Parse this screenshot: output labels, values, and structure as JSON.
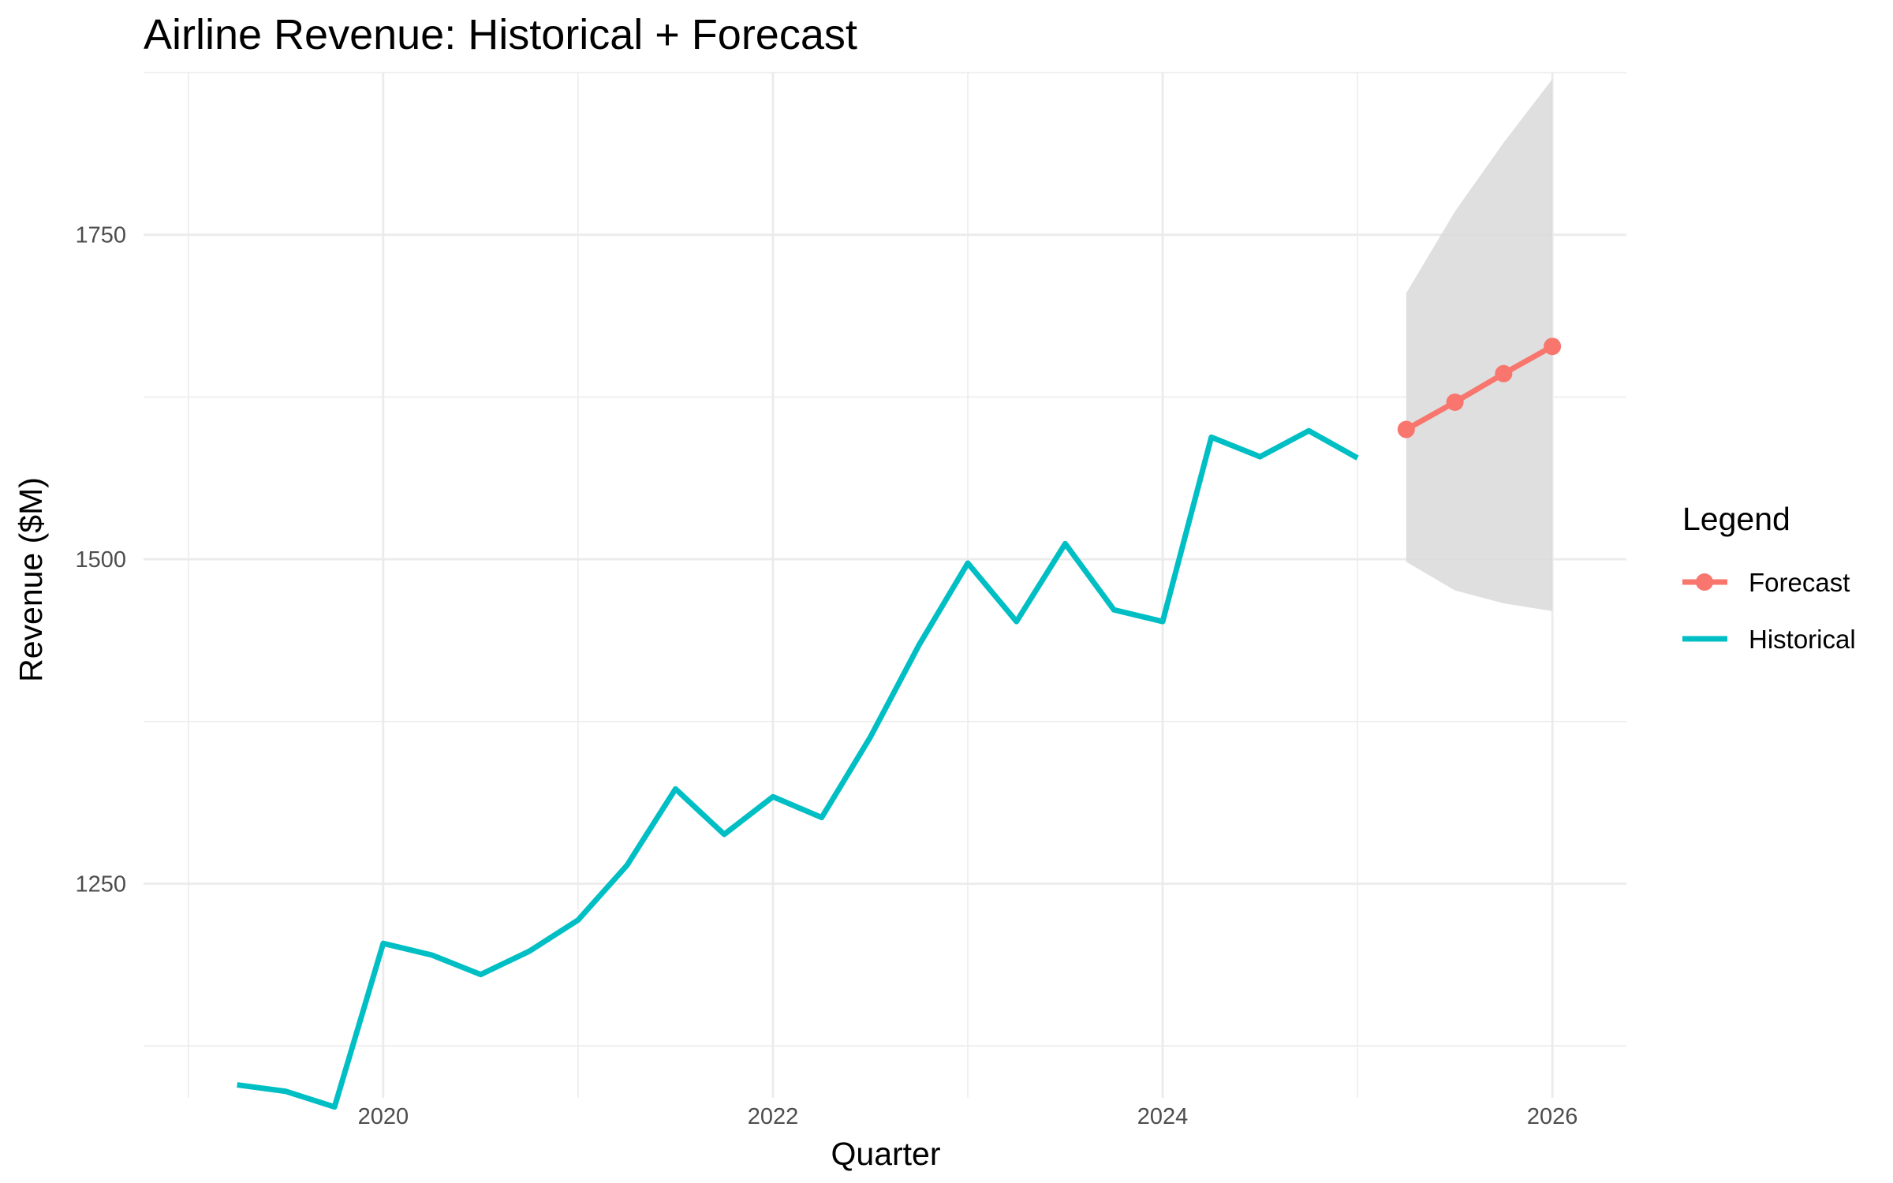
{
  "chart_data": {
    "type": "line",
    "title": "Airline Revenue: Historical + Forecast",
    "xlabel": "Quarter",
    "ylabel": "Revenue ($M)",
    "xlim": [
      2018.77,
      2026.38
    ],
    "ylim": [
      1085,
      1875
    ],
    "x_ticks": [
      2020,
      2022,
      2024,
      2026
    ],
    "y_ticks": [
      1250,
      1500,
      1750
    ],
    "grid": true,
    "legend": {
      "title": "Legend",
      "position": "right"
    },
    "series": [
      {
        "name": "Historical",
        "color": "#00BFC4",
        "x": [
          "2019-04-01",
          "2019-07-01",
          "2019-10-01",
          "2020-01-01",
          "2020-04-01",
          "2020-07-01",
          "2020-10-01",
          "2021-01-01",
          "2021-04-01",
          "2021-07-01",
          "2021-10-01",
          "2022-01-01",
          "2022-04-01",
          "2022-07-01",
          "2022-10-01",
          "2023-01-01",
          "2023-04-01",
          "2023-07-01",
          "2023-10-01",
          "2024-01-01",
          "2024-04-01",
          "2024-07-01",
          "2024-10-01",
          "2025-01-01"
        ],
        "values": [
          1095,
          1090,
          1078,
          1204,
          1195,
          1180,
          1198,
          1222,
          1264,
          1323,
          1288,
          1317,
          1301,
          1363,
          1434,
          1497,
          1452,
          1512,
          1461,
          1452,
          1594,
          1579,
          1599,
          1578
        ]
      },
      {
        "name": "Forecast",
        "color": "#F8766D",
        "x": [
          "2025-04-01",
          "2025-07-01",
          "2025-10-01",
          "2026-01-01"
        ],
        "values": [
          1600,
          1621,
          1643,
          1664
        ],
        "lower": [
          1498,
          1476,
          1466,
          1460
        ],
        "upper": [
          1705,
          1768,
          1821,
          1870
        ]
      }
    ]
  }
}
